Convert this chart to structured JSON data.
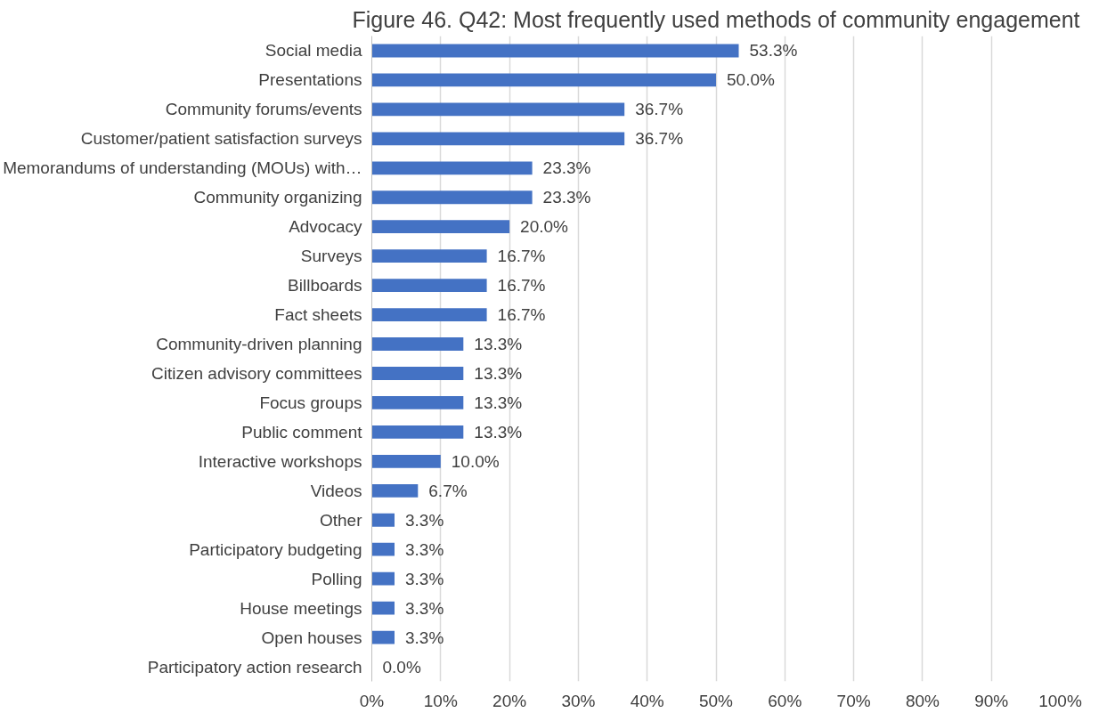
{
  "chart_data": {
    "type": "bar",
    "orientation": "horizontal",
    "title": "Figure 46. Q42: Most frequently used methods of community engagement",
    "categories": [
      "Social media",
      "Presentations",
      "Community forums/events",
      "Customer/patient satisfaction surveys",
      "Memorandums of understanding (MOUs) with…",
      "Community organizing",
      "Advocacy",
      "Surveys",
      "Billboards",
      "Fact sheets",
      "Community-driven planning",
      "Citizen advisory committees",
      "Focus groups",
      "Public comment",
      "Interactive workshops",
      "Videos",
      "Other",
      "Participatory budgeting",
      "Polling",
      "House meetings",
      "Open houses",
      "Participatory action research"
    ],
    "values": [
      53.3,
      50.0,
      36.7,
      36.7,
      23.3,
      23.3,
      20.0,
      16.7,
      16.7,
      16.7,
      13.3,
      13.3,
      13.3,
      13.3,
      10.0,
      6.7,
      3.3,
      3.3,
      3.3,
      3.3,
      3.3,
      0.0
    ],
    "value_labels": [
      "53.3%",
      "50.0%",
      "36.7%",
      "36.7%",
      "23.3%",
      "23.3%",
      "20.0%",
      "16.7%",
      "16.7%",
      "16.7%",
      "13.3%",
      "13.3%",
      "13.3%",
      "13.3%",
      "10.0%",
      "6.7%",
      "3.3%",
      "3.3%",
      "3.3%",
      "3.3%",
      "3.3%",
      "0.0%"
    ],
    "color": "#4472c4",
    "xlim": [
      0,
      100
    ],
    "xticks": [
      {
        "value": 0,
        "label": "0%"
      },
      {
        "value": 10,
        "label": "10%"
      },
      {
        "value": 20,
        "label": "20%"
      },
      {
        "value": 30,
        "label": "30%"
      },
      {
        "value": 40,
        "label": "40%"
      },
      {
        "value": 50,
        "label": "50%"
      },
      {
        "value": 60,
        "label": "60%"
      },
      {
        "value": 70,
        "label": "70%"
      },
      {
        "value": 80,
        "label": "80%"
      },
      {
        "value": 90,
        "label": "90%"
      },
      {
        "value": 100,
        "label": "100%"
      }
    ],
    "grid": "x"
  }
}
